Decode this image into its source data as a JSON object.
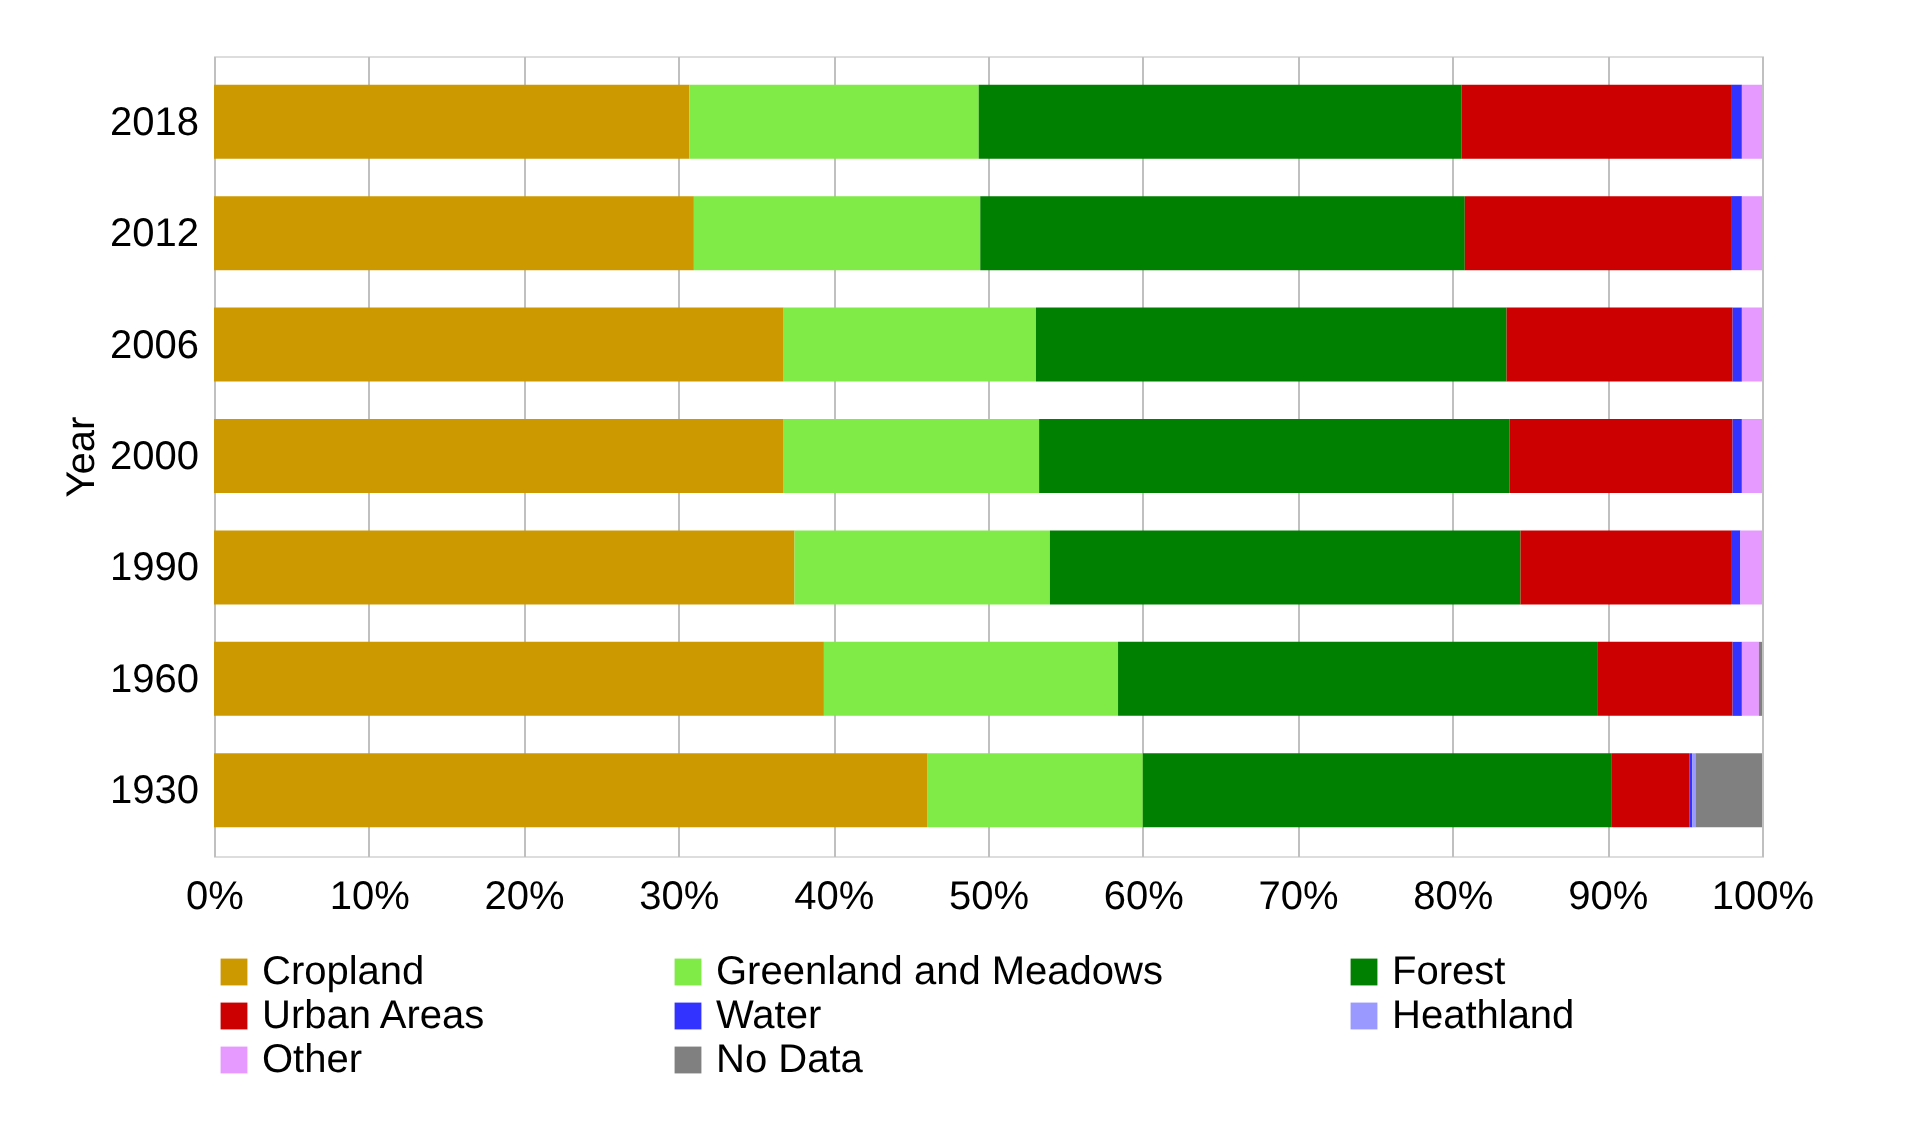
{
  "chart_data": {
    "type": "bar",
    "orientation": "horizontal",
    "stacked": true,
    "ylabel": "Year",
    "categories": [
      "2018",
      "2012",
      "2006",
      "2000",
      "1990",
      "1960",
      "1930"
    ],
    "series": [
      {
        "name": "Cropland",
        "color": "#cc9900",
        "values": [
          30.7,
          31.0,
          36.8,
          36.8,
          37.5,
          39.4,
          46.1
        ]
      },
      {
        "name": "Greenland and Meadows",
        "color": "#80ea46",
        "values": [
          18.7,
          18.5,
          16.3,
          16.5,
          16.5,
          19.0,
          13.9
        ]
      },
      {
        "name": "Forest",
        "color": "#008000",
        "values": [
          31.2,
          31.3,
          30.4,
          30.4,
          30.4,
          31.0,
          30.3
        ]
      },
      {
        "name": "Urban Areas",
        "color": "#cc0000",
        "values": [
          17.4,
          17.2,
          14.6,
          14.4,
          13.6,
          8.7,
          5.0
        ]
      },
      {
        "name": "Water",
        "color": "#3333ff",
        "values": [
          0.7,
          0.7,
          0.6,
          0.6,
          0.6,
          0.6,
          0.2
        ]
      },
      {
        "name": "Heathland",
        "color": "#9999ff",
        "values": [
          null,
          null,
          null,
          null,
          null,
          null,
          0.2
        ]
      },
      {
        "name": "Other",
        "color": "#e699ff",
        "values": [
          1.3,
          1.3,
          1.3,
          1.3,
          1.4,
          1.1,
          null
        ]
      },
      {
        "name": "No Data",
        "color": "#808080",
        "values": [
          null,
          null,
          null,
          null,
          null,
          0.2,
          4.3
        ]
      }
    ],
    "xlim": [
      0,
      100
    ],
    "xticks": [
      {
        "value": 0,
        "label": "0%"
      },
      {
        "value": 10,
        "label": "10%"
      },
      {
        "value": 20,
        "label": "20%"
      },
      {
        "value": 30,
        "label": "30%"
      },
      {
        "value": 40,
        "label": "40%"
      },
      {
        "value": 50,
        "label": "50%"
      },
      {
        "value": 60,
        "label": "60%"
      },
      {
        "value": 70,
        "label": "70%"
      },
      {
        "value": 80,
        "label": "80%"
      },
      {
        "value": 90,
        "label": "90%"
      },
      {
        "value": 100,
        "label": "100%"
      }
    ],
    "grid": "x",
    "legend": "bottom"
  }
}
